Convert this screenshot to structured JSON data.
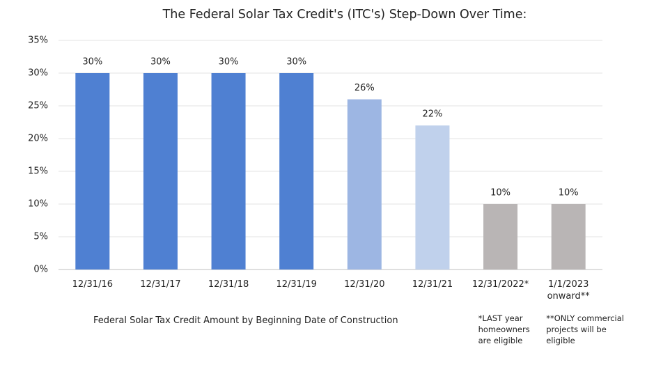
{
  "chart_data": {
    "type": "bar",
    "title": "The Federal Solar Tax Credit's (ITC's) Step-Down Over Time:",
    "x_label": "Federal Solar Tax Credit Amount by Beginning Date of Construction",
    "categories": [
      "12/31/16",
      "12/31/17",
      "12/31/18",
      "12/31/19",
      "12/31/20",
      "12/31/21",
      "12/31/2022*",
      "1/1/2023 onward**"
    ],
    "values": [
      30,
      30,
      30,
      30,
      26,
      22,
      10,
      10
    ],
    "value_labels": [
      "30%",
      "30%",
      "30%",
      "30%",
      "26%",
      "22%",
      "10%",
      "10%"
    ],
    "colors": [
      "#4f80d2",
      "#4f80d2",
      "#4f80d2",
      "#4f80d2",
      "#9db6e3",
      "#c0d1ec",
      "#b9b5b5",
      "#b9b5b5"
    ],
    "ylim": [
      0,
      35
    ],
    "yticks": [
      {
        "value": 0,
        "label": "0%"
      },
      {
        "value": 5,
        "label": "5%"
      },
      {
        "value": 10,
        "label": "10%"
      },
      {
        "value": 15,
        "label": "15%"
      },
      {
        "value": 20,
        "label": "20%"
      },
      {
        "value": 25,
        "label": "25%"
      },
      {
        "value": 30,
        "label": "30%"
      },
      {
        "value": 35,
        "label": "35%"
      }
    ],
    "grid": true,
    "notes": [
      {
        "category": "12/31/2022*",
        "text": "*LAST year homeowners are eligible"
      },
      {
        "category": "1/1/2023 onward**",
        "text": "**ONLY commercial projects will be eligible"
      }
    ]
  }
}
